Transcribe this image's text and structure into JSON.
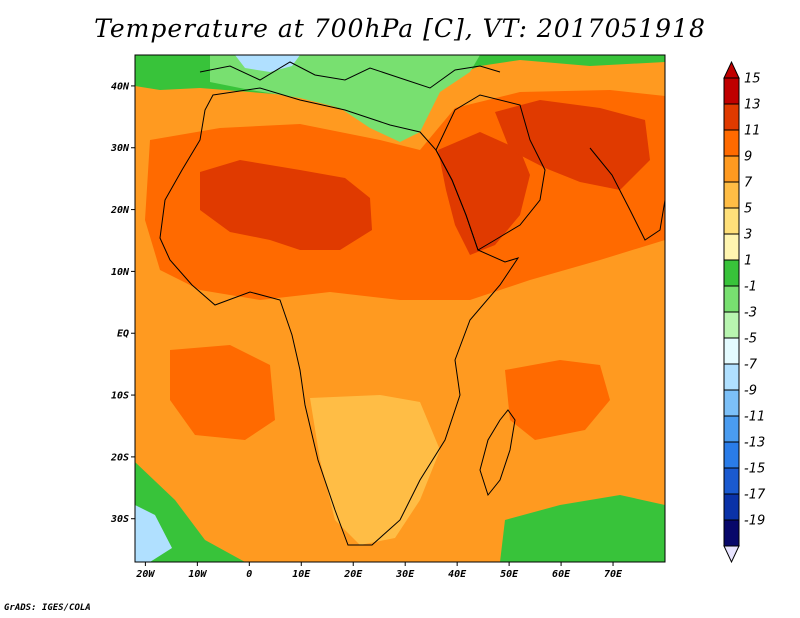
{
  "title": "Temperature at 700hPa [C], VT: 2017051918",
  "credit": "GrADS: IGES/COLA",
  "map": {
    "lon_range": [
      -22,
      80
    ],
    "lat_range": [
      -37,
      45
    ],
    "lat_ticks": [
      {
        "lat": 40,
        "label": "40N"
      },
      {
        "lat": 30,
        "label": "30N"
      },
      {
        "lat": 20,
        "label": "20N"
      },
      {
        "lat": 10,
        "label": "10N"
      },
      {
        "lat": 0,
        "label": "EQ"
      },
      {
        "lat": -10,
        "label": "10S"
      },
      {
        "lat": -20,
        "label": "20S"
      },
      {
        "lat": -30,
        "label": "30S"
      }
    ],
    "lon_ticks": [
      {
        "lon": -20,
        "label": "20W"
      },
      {
        "lon": -10,
        "label": "10W"
      },
      {
        "lon": 0,
        "label": "0"
      },
      {
        "lon": 10,
        "label": "10E"
      },
      {
        "lon": 20,
        "label": "20E"
      },
      {
        "lon": 30,
        "label": "30E"
      },
      {
        "lon": 40,
        "label": "40E"
      },
      {
        "lon": 50,
        "label": "50E"
      },
      {
        "lon": 60,
        "label": "60E"
      },
      {
        "lon": 70,
        "label": "70E"
      }
    ]
  },
  "colorbar": {
    "levels": [
      {
        "label": "15",
        "color": "#c00000"
      },
      {
        "label": "13",
        "color": "#e03a00"
      },
      {
        "label": "11",
        "color": "#ff6a00"
      },
      {
        "label": "9",
        "color": "#ff9a20"
      },
      {
        "label": "7",
        "color": "#ffbd45"
      },
      {
        "label": "5",
        "color": "#ffe07a"
      },
      {
        "label": "3",
        "color": "#fff5b0"
      },
      {
        "label": "1",
        "color": "#38c33a"
      },
      {
        "label": "-1",
        "color": "#78e070"
      },
      {
        "label": "-3",
        "color": "#b8f5b0"
      },
      {
        "label": "-5",
        "color": "#e4fbff"
      },
      {
        "label": "-7",
        "color": "#b0e0ff"
      },
      {
        "label": "-9",
        "color": "#7cc0f8"
      },
      {
        "label": "-11",
        "color": "#4a9cf0"
      },
      {
        "label": "-13",
        "color": "#2a7ce8"
      },
      {
        "label": "-15",
        "color": "#1a5ad0"
      },
      {
        "label": "-17",
        "color": "#0a32a8"
      },
      {
        "label": "-19",
        "color": "#08086a"
      }
    ],
    "bottom_cap_color": "#e8e4ff"
  },
  "regions": [
    {
      "name": "background-field",
      "color": "#ff9a20"
    },
    {
      "name": "north-mediterranean-band",
      "color": "#38c33a"
    },
    {
      "name": "mediterranean-cool-zone",
      "color": "#78e070"
    },
    {
      "name": "europe-cold-patch",
      "color": "#b0e0ff"
    },
    {
      "name": "north-africa-warm-zone",
      "color": "#ff6a00"
    },
    {
      "name": "sahara-hot-core",
      "color": "#e03a00"
    },
    {
      "name": "arabia-hot-zone",
      "color": "#e03a00"
    },
    {
      "name": "iran-pakistan-hot-zone",
      "color": "#e03a00"
    },
    {
      "name": "southern-africa-mild-zone",
      "color": "#ffbd45"
    },
    {
      "name": "south-atlantic-cool-zone",
      "color": "#38c33a"
    },
    {
      "name": "south-atlantic-cold-patch",
      "color": "#b0e0ff"
    },
    {
      "name": "south-indian-cool-zone",
      "color": "#38c33a"
    },
    {
      "name": "atlantic-warm-zone",
      "color": "#ff6a00"
    },
    {
      "name": "indian-ocean-warm-zone",
      "color": "#ff6a00"
    }
  ]
}
